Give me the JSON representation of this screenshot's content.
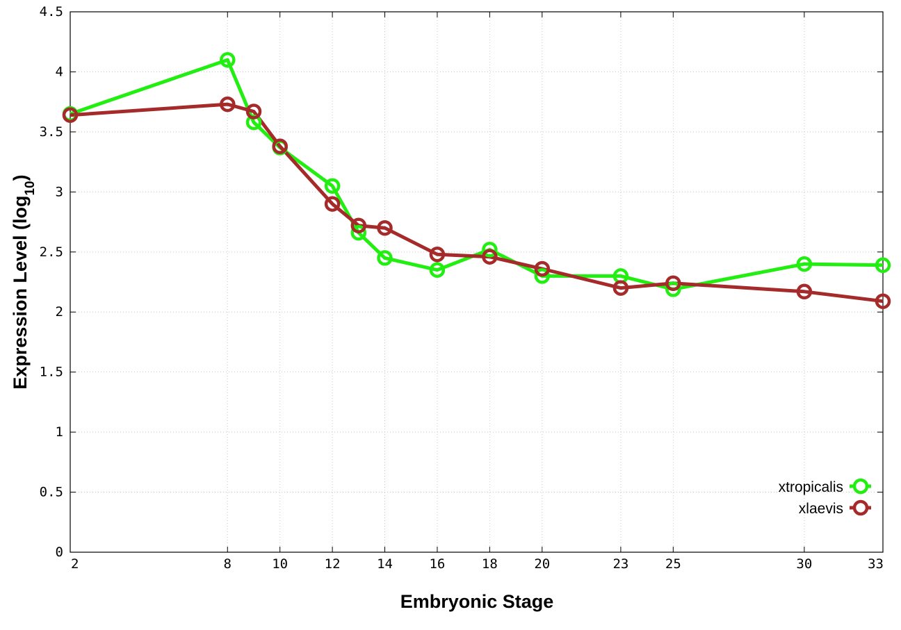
{
  "chart_data": {
    "type": "line",
    "title": "",
    "xlabel": "Embryonic Stage",
    "ylabel": "Expression Level (log",
    "ylabel_subscript": "10",
    "ylabel_suffix": ")",
    "x": [
      2,
      8,
      9,
      10,
      12,
      13,
      14,
      16,
      18,
      20,
      23,
      25,
      30,
      33
    ],
    "x_ticks": [
      "2",
      "8",
      "10",
      "12",
      "14",
      "16",
      "18",
      "20",
      "23",
      "25",
      "30",
      "33"
    ],
    "x_tick_values": [
      2,
      8,
      10,
      12,
      14,
      16,
      18,
      20,
      23,
      25,
      30,
      33
    ],
    "xlim": [
      2,
      33
    ],
    "y_ticks": [
      "0",
      "0.5",
      "1",
      "1.5",
      "2",
      "2.5",
      "3",
      "3.5",
      "4",
      "4.5"
    ],
    "y_tick_values": [
      0,
      0.5,
      1,
      1.5,
      2,
      2.5,
      3,
      3.5,
      4,
      4.5
    ],
    "ylim": [
      0,
      4.5
    ],
    "grid": true,
    "legend_position": "bottom-right",
    "series": [
      {
        "name": "xtropicalis",
        "color": "#22ee11",
        "marker": "open-circle",
        "values": [
          3.65,
          4.1,
          3.58,
          3.37,
          3.05,
          2.66,
          2.45,
          2.35,
          2.52,
          2.3,
          2.3,
          2.19,
          2.4,
          2.39
        ]
      },
      {
        "name": "xlaevis",
        "color": "#a52a2a",
        "marker": "open-circle",
        "values": [
          3.64,
          3.73,
          3.67,
          3.38,
          2.9,
          2.72,
          2.7,
          2.48,
          2.46,
          2.36,
          2.2,
          2.24,
          2.17,
          2.09
        ]
      }
    ]
  }
}
